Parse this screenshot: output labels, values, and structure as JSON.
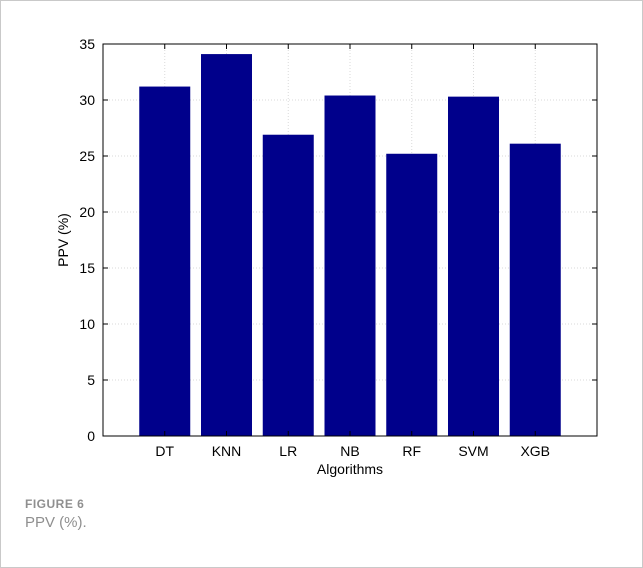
{
  "chart_data": {
    "type": "bar",
    "categories": [
      "DT",
      "KNN",
      "LR",
      "NB",
      "RF",
      "SVM",
      "XGB"
    ],
    "values": [
      31.2,
      34.1,
      26.9,
      30.4,
      25.2,
      30.3,
      26.1
    ],
    "title": "",
    "xlabel": "Algorithms",
    "ylabel": "PPV (%)",
    "ylim": [
      0,
      35
    ],
    "yticks": [
      0,
      5,
      10,
      15,
      20,
      25,
      30,
      35
    ],
    "grid": true,
    "legend": "none",
    "bar_color": "#00008b"
  },
  "caption": {
    "label": "FIGURE 6",
    "text": "PPV (%)."
  }
}
